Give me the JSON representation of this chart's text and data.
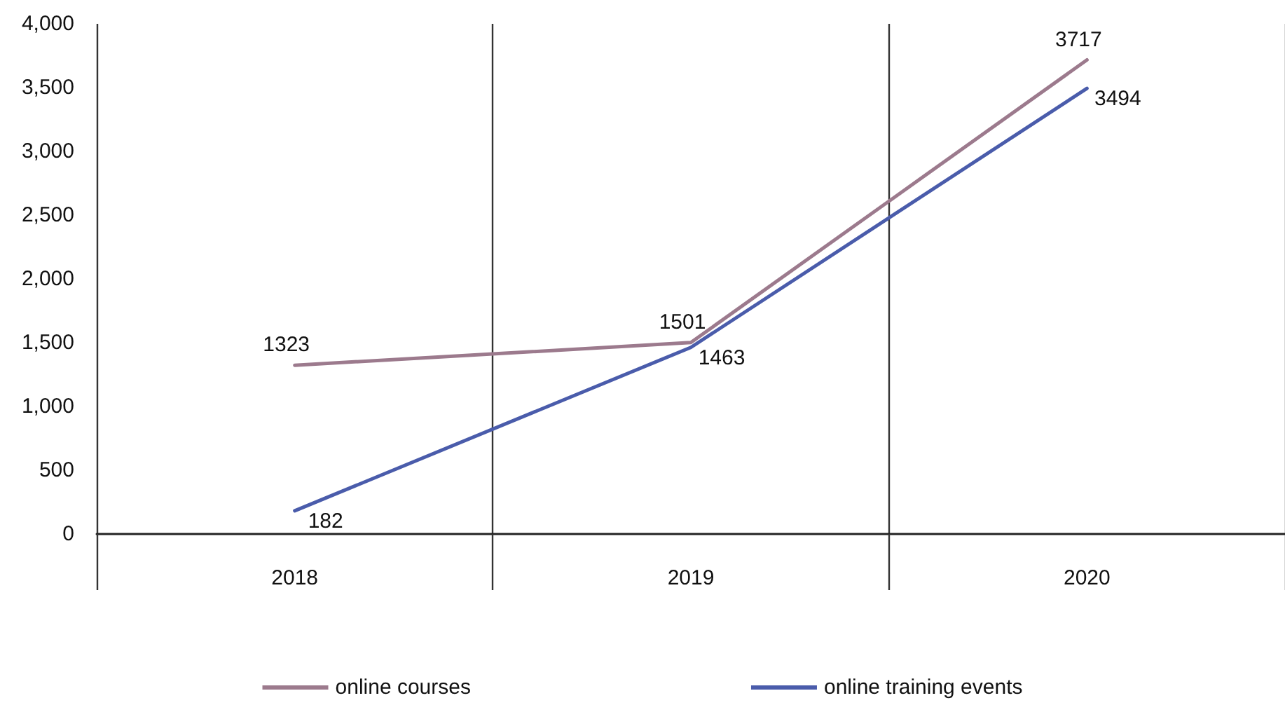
{
  "chart_data": {
    "type": "line",
    "categories": [
      "2018",
      "2019",
      "2020"
    ],
    "series": [
      {
        "name": "online courses",
        "color": "#9c7a8d",
        "values": [
          1323,
          1501,
          3717
        ]
      },
      {
        "name": "online training events",
        "color": "#4a5cab",
        "values": [
          182,
          1463,
          3494
        ]
      }
    ],
    "ylim": [
      0,
      4000
    ],
    "yticks": [
      0,
      {
        "value": 500,
        "label": "500"
      },
      {
        "value": 1000,
        "label": "1,000"
      },
      {
        "value": 1500,
        "label": "1,500"
      },
      {
        "value": 2000,
        "label": "2,000"
      },
      {
        "value": 2500,
        "label": "2,500"
      },
      {
        "value": 3000,
        "label": "3,000"
      },
      {
        "value": 3500,
        "label": "3,500"
      },
      {
        "value": 4000,
        "label": "4,000"
      }
    ],
    "grid": "x",
    "legend": "bottom",
    "marker": "none",
    "line_style": "solid",
    "data_labels": true
  }
}
